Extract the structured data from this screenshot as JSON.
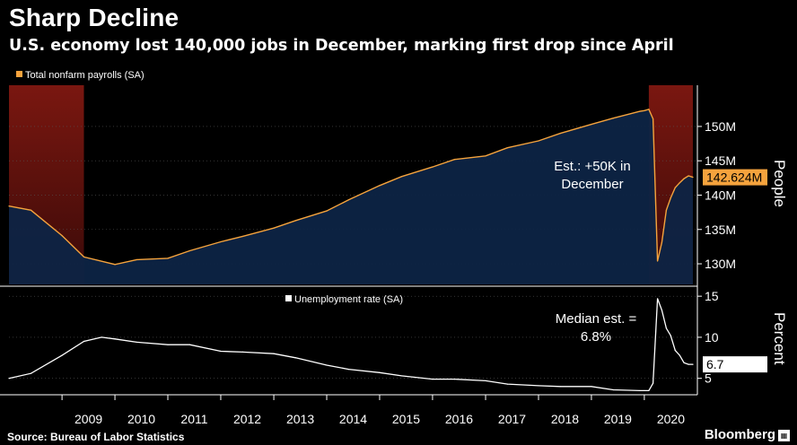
{
  "header": {
    "title": "Sharp Decline",
    "subtitle": "U.S. economy lost 140,000 jobs in December, marking first drop since April"
  },
  "footer": {
    "source": "Source: Bureau of Labor Statistics",
    "brand": "Bloomberg"
  },
  "colors": {
    "background": "#000000",
    "payrolls_line": "#f5a33d",
    "payrolls_fill": "#0d2445",
    "recession_band": "#8a1a14",
    "unemployment_line": "#ffffff",
    "grid": "#555555",
    "last_value_box": "#f5a33d"
  },
  "chart_data": [
    {
      "type": "area",
      "legend": "Total nonfarm payrolls (SA)",
      "ylabel": "People",
      "yticks": [
        "130M",
        "135M",
        "140M",
        "145M",
        "150M"
      ],
      "ylim": [
        127,
        156
      ],
      "xlim": [
        "2008-01",
        "2021-01"
      ],
      "last_value_label": "142.624M",
      "annotation": "Est.: +50K in\nDecember",
      "recession_shading": [
        [
          "2008-01",
          "2009-06"
        ],
        [
          "2020-02",
          "2020-12"
        ]
      ],
      "series": [
        {
          "name": "Total nonfarm payrolls (SA)",
          "x": [
            "2008-01",
            "2008-06",
            "2009-01",
            "2009-06",
            "2010-01",
            "2010-06",
            "2011-01",
            "2011-06",
            "2012-01",
            "2012-06",
            "2013-01",
            "2013-06",
            "2014-01",
            "2014-06",
            "2015-01",
            "2015-06",
            "2016-01",
            "2016-06",
            "2017-01",
            "2017-06",
            "2018-01",
            "2018-06",
            "2019-01",
            "2019-06",
            "2019-12",
            "2020-01",
            "2020-02",
            "2020-03",
            "2020-04",
            "2020-05",
            "2020-06",
            "2020-07",
            "2020-08",
            "2020-09",
            "2020-10",
            "2020-11",
            "2020-12"
          ],
          "values": [
            138.4,
            137.8,
            134.1,
            131.0,
            129.9,
            130.6,
            130.8,
            131.9,
            133.2,
            134.0,
            135.2,
            136.3,
            137.7,
            139.3,
            141.4,
            142.7,
            144.1,
            145.2,
            145.7,
            146.9,
            147.9,
            149.0,
            150.3,
            151.2,
            152.2,
            152.3,
            152.5,
            151.1,
            130.4,
            133.1,
            137.8,
            139.6,
            141.1,
            141.8,
            142.4,
            142.8,
            142.6
          ]
        }
      ]
    },
    {
      "type": "line",
      "legend": "Unemployment rate (SA)",
      "ylabel": "Percent",
      "yticks": [
        "5",
        "10",
        "15"
      ],
      "ylim": [
        3,
        16
      ],
      "xlim": [
        "2008-01",
        "2021-01"
      ],
      "last_value_label": "6.7",
      "annotation": "Median est. =\n6.8%",
      "xticks": [
        "2009",
        "2010",
        "2011",
        "2012",
        "2013",
        "2014",
        "2015",
        "2016",
        "2017",
        "2018",
        "2019",
        "2020"
      ],
      "series": [
        {
          "name": "Unemployment rate (SA)",
          "x": [
            "2008-01",
            "2008-06",
            "2009-01",
            "2009-06",
            "2009-10",
            "2010-01",
            "2010-06",
            "2011-01",
            "2011-06",
            "2012-01",
            "2012-06",
            "2013-01",
            "2013-06",
            "2014-01",
            "2014-06",
            "2015-01",
            "2015-06",
            "2016-01",
            "2016-06",
            "2017-01",
            "2017-06",
            "2018-01",
            "2018-06",
            "2019-01",
            "2019-06",
            "2019-12",
            "2020-01",
            "2020-02",
            "2020-03",
            "2020-04",
            "2020-05",
            "2020-06",
            "2020-07",
            "2020-08",
            "2020-09",
            "2020-10",
            "2020-11",
            "2020-12"
          ],
          "values": [
            5.0,
            5.6,
            7.8,
            9.5,
            10.0,
            9.8,
            9.4,
            9.1,
            9.1,
            8.3,
            8.2,
            8.0,
            7.5,
            6.6,
            6.1,
            5.7,
            5.3,
            4.9,
            4.9,
            4.7,
            4.3,
            4.1,
            4.0,
            4.0,
            3.6,
            3.5,
            3.5,
            3.5,
            4.4,
            14.7,
            13.3,
            11.1,
            10.2,
            8.4,
            7.8,
            6.9,
            6.7,
            6.7
          ]
        }
      ]
    }
  ]
}
